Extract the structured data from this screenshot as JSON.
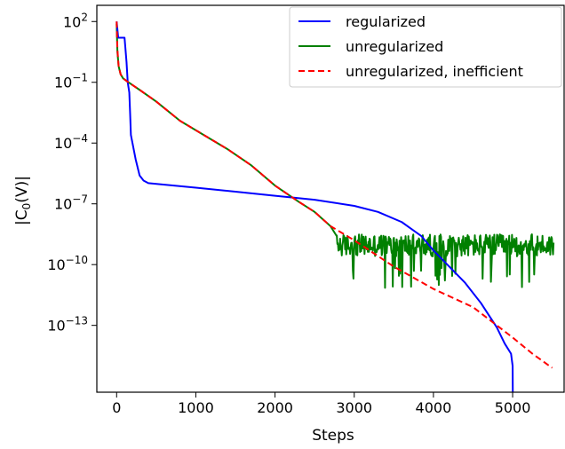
{
  "chart_data": {
    "type": "line",
    "xlabel": "Steps",
    "ylabel": "|C_0(V)|",
    "ylabel_display": {
      "base": "|C",
      "sub": "0",
      "tail": "(V)|"
    },
    "xlim": [
      -250,
      5650
    ],
    "ylim_log10": [
      -16.3,
      2.8
    ],
    "yscale": "log",
    "x_ticks": [
      0,
      1000,
      2000,
      3000,
      4000,
      5000
    ],
    "y_ticks": [
      {
        "exp": 2,
        "base": "10",
        "sup": "2"
      },
      {
        "exp": -1,
        "base": "10",
        "sup": "−1"
      },
      {
        "exp": -4,
        "base": "10",
        "sup": "−4"
      },
      {
        "exp": -7,
        "base": "10",
        "sup": "−7"
      },
      {
        "exp": -10,
        "base": "10",
        "sup": "−10"
      },
      {
        "exp": -13,
        "base": "10",
        "sup": "−13"
      }
    ],
    "grid": false,
    "legend_position": "top-right",
    "series": [
      {
        "name": "regularized",
        "color": "#0000ff",
        "dash": "solid",
        "points": [
          [
            0,
            2.0
          ],
          [
            20,
            1.2
          ],
          [
            100,
            1.2
          ],
          [
            125,
            0.0
          ],
          [
            140,
            -1.0
          ],
          [
            160,
            -1.5
          ],
          [
            170,
            -2.5
          ],
          [
            180,
            -3.6
          ],
          [
            200,
            -4.0
          ],
          [
            240,
            -4.8
          ],
          [
            290,
            -5.6
          ],
          [
            340,
            -5.85
          ],
          [
            400,
            -5.98
          ],
          [
            1000,
            -6.2
          ],
          [
            1500,
            -6.4
          ],
          [
            2000,
            -6.6
          ],
          [
            2500,
            -6.8
          ],
          [
            3000,
            -7.1
          ],
          [
            3300,
            -7.4
          ],
          [
            3600,
            -7.9
          ],
          [
            3850,
            -8.6
          ],
          [
            4000,
            -9.3
          ],
          [
            4200,
            -10.1
          ],
          [
            4400,
            -10.9
          ],
          [
            4600,
            -11.9
          ],
          [
            4800,
            -13.1
          ],
          [
            4900,
            -13.9
          ],
          [
            4980,
            -14.4
          ],
          [
            5000,
            -15.0
          ],
          [
            5002,
            -16.3
          ]
        ]
      },
      {
        "name": "unregularized",
        "color": "#008000",
        "dash": "solid",
        "points": [
          [
            0,
            1.9
          ],
          [
            10,
            0.5
          ],
          [
            25,
            -0.2
          ],
          [
            50,
            -0.6
          ],
          [
            80,
            -0.8
          ],
          [
            130,
            -0.95
          ],
          [
            300,
            -1.4
          ],
          [
            500,
            -1.95
          ],
          [
            800,
            -2.9
          ],
          [
            1100,
            -3.6
          ],
          [
            1400,
            -4.3
          ],
          [
            1700,
            -5.1
          ],
          [
            2000,
            -6.1
          ],
          [
            2300,
            -6.9
          ],
          [
            2500,
            -7.4
          ],
          [
            2700,
            -8.1
          ],
          [
            2780,
            -8.6
          ]
        ],
        "noise_band": {
          "x_start": 2780,
          "x_end": 5520,
          "center": -9.05,
          "spread": 0.55,
          "dip_min": -11.2,
          "spike_max": -8.5
        }
      },
      {
        "name": "unregularized, inefficient",
        "color": "#ff0000",
        "dash": "dashed",
        "points": [
          [
            0,
            2.0
          ],
          [
            10,
            0.6
          ],
          [
            25,
            -0.2
          ],
          [
            50,
            -0.6
          ],
          [
            80,
            -0.8
          ],
          [
            130,
            -0.95
          ],
          [
            300,
            -1.4
          ],
          [
            500,
            -1.95
          ],
          [
            800,
            -2.9
          ],
          [
            1100,
            -3.6
          ],
          [
            1400,
            -4.3
          ],
          [
            1700,
            -5.1
          ],
          [
            2000,
            -6.1
          ],
          [
            2300,
            -6.9
          ],
          [
            2500,
            -7.4
          ],
          [
            2700,
            -8.1
          ],
          [
            3000,
            -8.8
          ],
          [
            3500,
            -10.1
          ],
          [
            4000,
            -11.2
          ],
          [
            4500,
            -12.1
          ],
          [
            5000,
            -13.6
          ],
          [
            5250,
            -14.4
          ],
          [
            5500,
            -15.1
          ]
        ]
      }
    ]
  }
}
